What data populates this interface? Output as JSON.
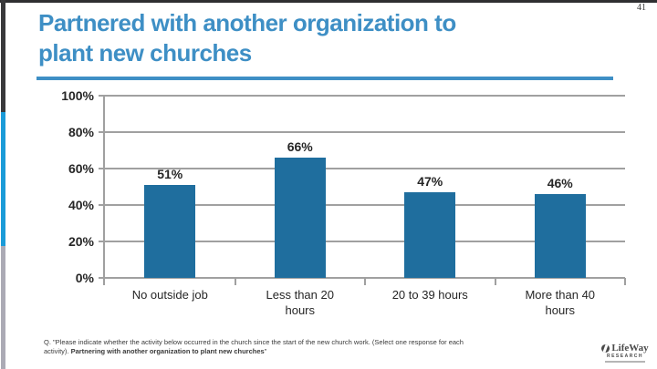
{
  "slide": {
    "page_number": "41",
    "title_lines": [
      "Partnered with another organization to",
      "plant new churches"
    ]
  },
  "chart_data": {
    "type": "bar",
    "title": "Partnered with another organization to plant new churches",
    "categories": [
      "No outside job",
      "Less than 20 hours",
      "20 to 39 hours",
      "More than 40 hours"
    ],
    "category_label_lines": [
      [
        "No outside job"
      ],
      [
        "Less than 20",
        "hours"
      ],
      [
        "20 to 39 hours"
      ],
      [
        "More than 40",
        "hours"
      ]
    ],
    "values": [
      51,
      66,
      47,
      46
    ],
    "value_labels": [
      "51%",
      "66%",
      "47%",
      "46%"
    ],
    "xlabel": "",
    "ylabel": "",
    "ylim": [
      0,
      100
    ],
    "yticks": [
      0,
      20,
      40,
      60,
      80,
      100
    ],
    "ytick_labels": [
      "0%",
      "20%",
      "40%",
      "60%",
      "80%",
      "100%"
    ],
    "grid": true,
    "legend": false,
    "bar_color": "#1f6e9e"
  },
  "footer": {
    "text_regular": "Q. \"Please indicate whether the activity below occurred in the church since the start of the new church work. (Select one response for each activity). ",
    "text_bold": "Partnering with another organization to plant new churches",
    "text_suffix": "\""
  },
  "logo": {
    "name": "LifeWay",
    "sub": "RESEARCH"
  },
  "colors": {
    "accent_blue": "#3e8fc5",
    "bar_blue": "#1f6e9e",
    "strip_black": "#39393b",
    "strip_blue": "#1b9bd8",
    "strip_gray": "#abaab5",
    "gridline_gray": "#a0a0a0"
  }
}
